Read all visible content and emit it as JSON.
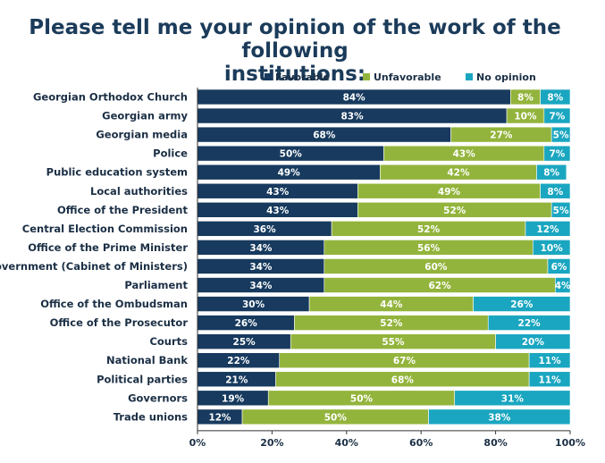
{
  "title_line1": "Please tell me your opinion of the work of the following",
  "title_line2": "institutions:",
  "chart_data": {
    "type": "bar",
    "orientation": "horizontal",
    "stacked": true,
    "categories": [
      "Georgian Orthodox Church",
      "Georgian army",
      "Georgian media",
      "Police",
      "Public education system",
      "Local authorities",
      "Office of the President",
      "Central Election Commission",
      "Office of the Prime Minister",
      "Government (Cabinet of Ministers)",
      "Parliament",
      "Office of the Ombudsman",
      "Office of the Prosecutor",
      "Courts",
      "National Bank",
      "Political parties",
      "Governors",
      "Trade unions"
    ],
    "series": [
      {
        "name": "Favorable",
        "color": "#173a5e",
        "values": [
          84,
          83,
          68,
          50,
          49,
          43,
          43,
          36,
          34,
          34,
          34,
          30,
          26,
          25,
          22,
          21,
          19,
          12
        ]
      },
      {
        "name": "Unfavorable",
        "color": "#93b43c",
        "values": [
          8,
          10,
          27,
          43,
          42,
          49,
          52,
          52,
          56,
          60,
          62,
          44,
          52,
          55,
          67,
          68,
          50,
          50
        ]
      },
      {
        "name": "No opinion",
        "color": "#1aa6c0",
        "values": [
          8,
          7,
          5,
          7,
          8,
          8,
          5,
          12,
          10,
          6,
          4,
          26,
          22,
          20,
          11,
          11,
          31,
          38
        ]
      }
    ],
    "xlim": [
      0,
      100
    ],
    "xticks": [
      "0%",
      "20%",
      "40%",
      "60%",
      "80%",
      "100%"
    ],
    "legend_position": "top",
    "grid": false
  }
}
